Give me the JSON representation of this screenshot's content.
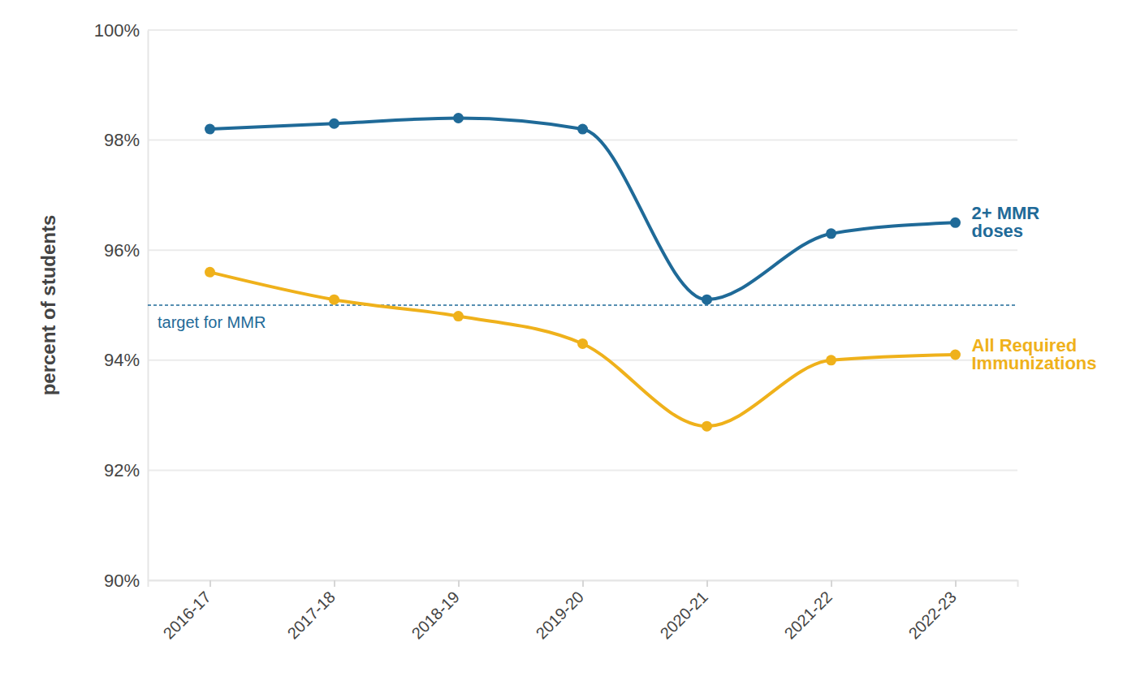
{
  "chart_data": {
    "type": "line",
    "y_label": "percent of students",
    "categories": [
      "2016-17",
      "2017-18",
      "2018-19",
      "2019-20",
      "2020-21",
      "2021-22",
      "2022-23"
    ],
    "series": [
      {
        "name": "2+ MMR doses",
        "color": "#1f6a98",
        "marker": "circle",
        "values": [
          98.2,
          98.3,
          98.4,
          98.2,
          95.1,
          96.3,
          96.5
        ]
      },
      {
        "name": "All Required Immunizations",
        "color": "#efb11b",
        "marker": "circle",
        "values": [
          95.6,
          95.1,
          94.8,
          94.3,
          92.8,
          94.0,
          94.1
        ]
      }
    ],
    "annotations": [
      {
        "y": 95,
        "text": "target for MMR",
        "color": "#1f6a98"
      }
    ],
    "ylim": [
      90,
      100
    ],
    "yticks": [
      {
        "value": 90,
        "label": "90%"
      },
      {
        "value": 92,
        "label": "92%"
      },
      {
        "value": 94,
        "label": "94%"
      },
      {
        "value": 96,
        "label": "96%"
      },
      {
        "value": 98,
        "label": "98%"
      },
      {
        "value": 100,
        "label": "100%"
      }
    ],
    "grid": true
  }
}
